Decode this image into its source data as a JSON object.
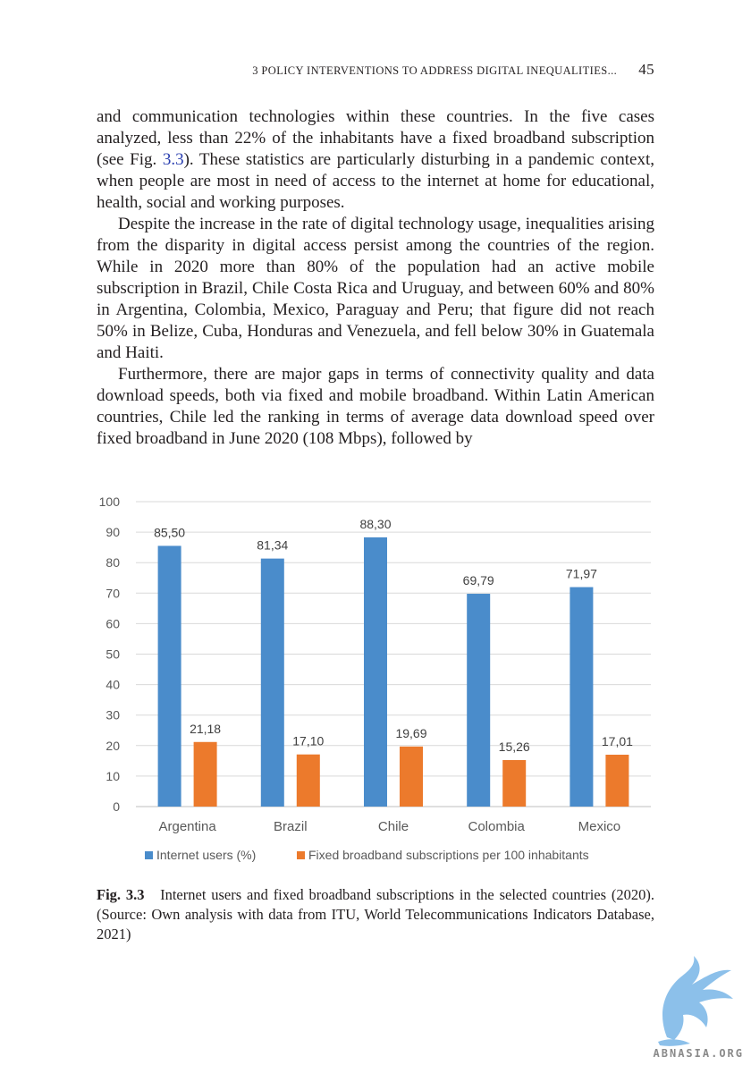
{
  "header": {
    "running_title": "3 POLICY INTERVENTIONS TO ADDRESS DIGITAL INEQUALITIES...",
    "page_number": "45"
  },
  "body": {
    "p1_before": "and communication technologies within these countries. In the five cases analyzed, less than 22% of the inhabitants have a fixed broadband subscription (see Fig. ",
    "p1_ref": "3.3",
    "p1_after": "). These statistics are particularly disturbing in a pandemic context, when people are most in need of access to the internet at home for educational, health, social and working purposes.",
    "p2": "Despite the increase in the rate of digital technology usage, inequalities arising from the disparity in digital access persist among the countries of the region. While in 2020 more than 80% of the population had an active mobile subscription in Brazil, Chile Costa Rica and Uruguay, and between 60% and 80% in Argentina, Colombia, Mexico, Paraguay and Peru; that figure did not reach 50% in Belize, Cuba, Honduras and Venezuela, and fell below 30% in Guatemala and Haiti.",
    "p3": "Furthermore, there are major gaps in terms of connectivity quality and data download speeds, both via fixed and mobile broadband. Within Latin American countries, Chile led the ranking in terms of average data download speed over fixed broadband in June 2020 (108 Mbps), followed by"
  },
  "chart_data": {
    "type": "bar",
    "categories": [
      "Argentina",
      "Brazil",
      "Chile",
      "Colombia",
      "Mexico"
    ],
    "series": [
      {
        "name": "Internet users (%)",
        "color": "#4a8ccb",
        "values": [
          85.5,
          81.34,
          88.3,
          69.79,
          71.97
        ],
        "labels": [
          "85,50",
          "81,34",
          "88,30",
          "69,79",
          "71,97"
        ]
      },
      {
        "name": "Fixed broadband subscriptions per 100 inhabitants",
        "color": "#ec7a2c",
        "values": [
          21.18,
          17.1,
          19.69,
          15.26,
          17.01
        ],
        "labels": [
          "21,18",
          "17,10",
          "19,69",
          "15,26",
          "17,01"
        ]
      }
    ],
    "yticks": [
      "0",
      "10",
      "20",
      "30",
      "40",
      "50",
      "60",
      "70",
      "80",
      "90",
      "100"
    ],
    "ylim": [
      0,
      100
    ],
    "grid": true,
    "legend_position": "bottom"
  },
  "caption": {
    "label": "Fig. 3.3",
    "text": "Internet users and fixed broadband subscriptions in the selected countries (2020). (Source: Own analysis with data from ITU, World Telecommunications Indicators Database, 2021)"
  },
  "watermark": {
    "text": "ABNASIA.ORG",
    "icon": "dragon-logo-icon"
  }
}
